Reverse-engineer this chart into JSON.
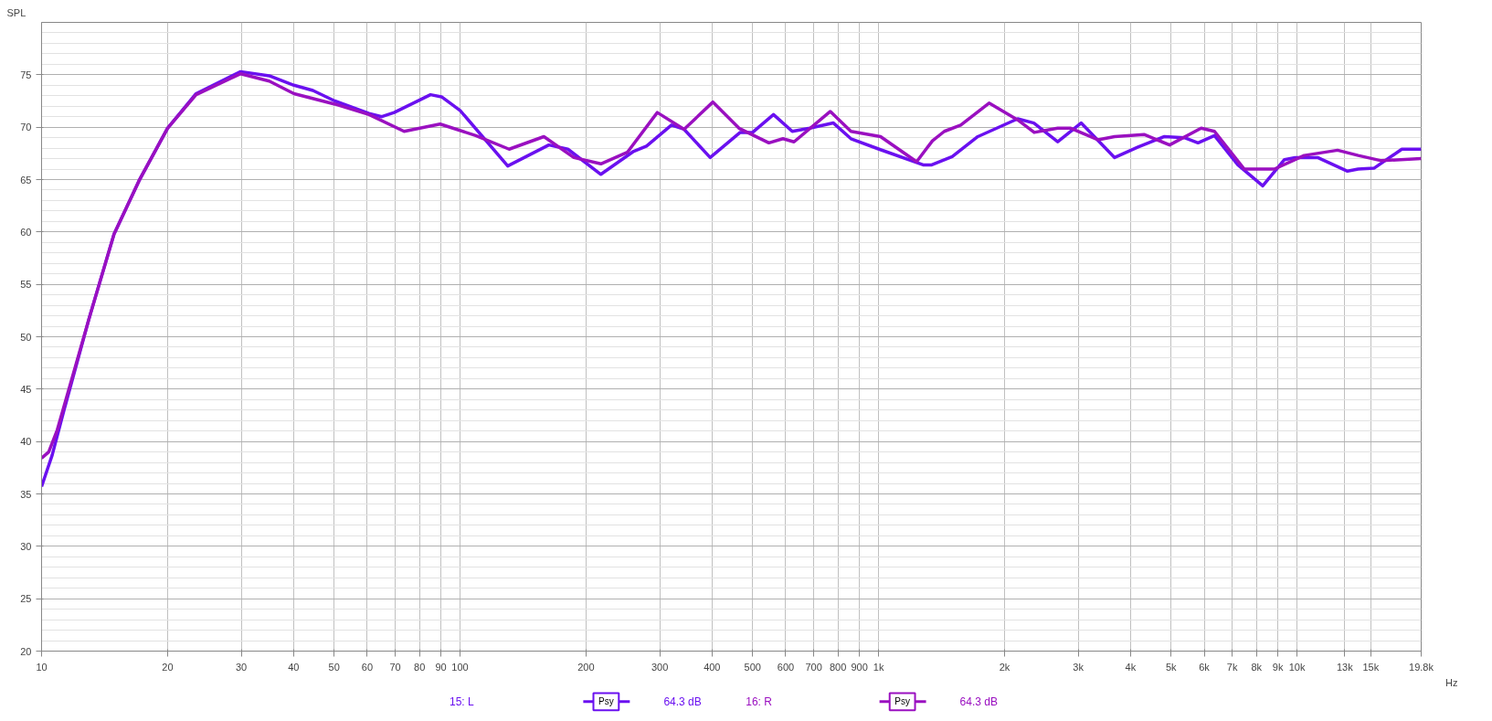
{
  "chart_data": {
    "type": "line",
    "ylabel": "SPL",
    "log": "x",
    "xlim": [
      10,
      19800
    ],
    "ylim": [
      20,
      80
    ],
    "xticks": [
      10,
      20,
      30,
      40,
      50,
      60,
      70,
      80,
      90,
      100,
      200,
      300,
      400,
      500,
      600,
      700,
      800,
      900,
      {
        "value": 1000,
        "label": "1k"
      },
      {
        "value": 2000,
        "label": "2k"
      },
      {
        "value": 3000,
        "label": "3k"
      },
      {
        "value": 4000,
        "label": "4k"
      },
      {
        "value": 5000,
        "label": "5k"
      },
      {
        "value": 6000,
        "label": "6k"
      },
      {
        "value": 7000,
        "label": "7k"
      },
      {
        "value": 8000,
        "label": "8k"
      },
      {
        "value": 9000,
        "label": "9k"
      },
      {
        "value": 10000,
        "label": "10k"
      },
      {
        "value": 13000,
        "label": "13k"
      },
      {
        "value": 15000,
        "label": "15k"
      },
      {
        "value": 19800,
        "label": "19.8k"
      }
    ],
    "xlabel": "Hz",
    "yticks": [
      20,
      25,
      30,
      35,
      40,
      45,
      50,
      55,
      60,
      65,
      70,
      75
    ],
    "grid": true,
    "legend": "bottom",
    "line_style": "solid",
    "annotations": [
      "Psy",
      "64.3 dB",
      "Psy",
      "64.3 dB"
    ],
    "series": [
      {
        "name": "15: L",
        "color": "#6a10f0",
        "x": [
          10,
          10.6,
          11.3,
          13,
          14.9,
          17.1,
          20,
          23.4,
          29.9,
          35,
          40.1,
          44.5,
          50.2,
          60.6,
          65,
          69.6,
          85,
          90.3,
          100,
          130,
          163,
          181,
          217,
          260,
          279,
          320,
          343,
          396,
          467,
          500,
          561,
          622,
          685,
          780,
          859,
          1003,
          1278,
          1340,
          1500,
          1727,
          2150,
          2350,
          2680,
          3048,
          3665,
          4170,
          4820,
          5380,
          5800,
          6350,
          7220,
          8280,
          9330,
          9900,
          11200,
          13200,
          14000,
          15300,
          17800,
          19800
        ],
        "values": [
          35.7,
          38.7,
          42.9,
          51.8,
          59.8,
          64.9,
          69.9,
          73.2,
          75.3,
          74.9,
          74.0,
          73.5,
          72.5,
          71.3,
          71.0,
          71.4,
          73.1,
          72.9,
          71.6,
          66.3,
          68.3,
          67.9,
          65.5,
          67.7,
          68.2,
          70.2,
          69.8,
          67.1,
          69.5,
          69.5,
          71.2,
          69.6,
          69.9,
          70.4,
          68.9,
          67.9,
          66.4,
          66.4,
          67.2,
          69.1,
          70.8,
          70.4,
          68.6,
          70.4,
          67.1,
          68.1,
          69.1,
          69.0,
          68.5,
          69.2,
          66.4,
          64.4,
          66.9,
          67.1,
          67.1,
          65.8,
          66.0,
          66.1,
          67.9,
          67.9
        ]
      },
      {
        "name": "16: R",
        "color": "#9a10c0",
        "x": [
          10,
          10.4,
          10.9,
          13,
          14.9,
          17.1,
          20,
          23.4,
          29.9,
          35,
          40.1,
          50.2,
          60.6,
          73.5,
          89.6,
          109,
          131,
          158.6,
          187,
          217,
          251,
          296,
          343,
          402,
          464,
          547,
          591,
          628,
          767,
          859,
          1011,
          1233,
          1345,
          1436,
          1572,
          1837,
          2150,
          2355,
          2680,
          2880,
          3343,
          3665,
          4310,
          4960,
          5900,
          6350,
          7480,
          8830,
          10400,
          12500,
          14000,
          15900,
          19800
        ],
        "values": [
          38.4,
          39.0,
          41.1,
          51.8,
          59.8,
          64.9,
          69.9,
          73.1,
          75.1,
          74.4,
          73.2,
          72.2,
          71.2,
          69.6,
          70.3,
          69.2,
          67.9,
          69.1,
          67.1,
          66.5,
          67.6,
          71.4,
          69.8,
          72.4,
          69.9,
          68.5,
          68.9,
          68.6,
          71.5,
          69.6,
          69.1,
          66.7,
          68.7,
          69.6,
          70.2,
          72.3,
          70.7,
          69.5,
          69.9,
          69.9,
          68.8,
          69.1,
          69.3,
          68.3,
          69.9,
          69.6,
          66.0,
          66.0,
          67.3,
          67.8,
          67.3,
          66.8,
          67.0
        ]
      }
    ]
  }
}
